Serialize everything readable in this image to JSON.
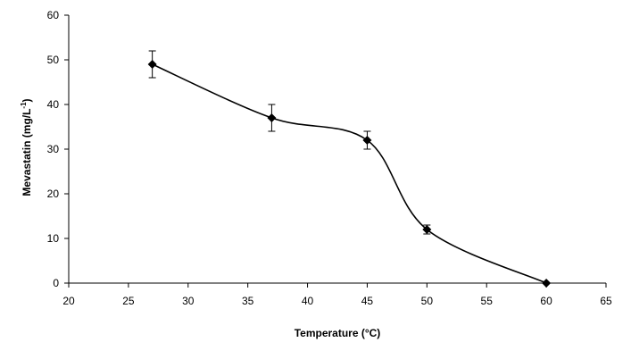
{
  "chart_data": {
    "type": "line",
    "title": "",
    "xlabel": "Temperature (°C)",
    "ylabel_main": "Mevastatin (mg/L",
    "ylabel_sup": "-1",
    "ylabel_close": ")",
    "xlim": [
      20,
      65
    ],
    "ylim": [
      0,
      60
    ],
    "x_ticks": [
      20,
      25,
      30,
      35,
      40,
      45,
      50,
      55,
      60,
      65
    ],
    "y_ticks": [
      0,
      10,
      20,
      30,
      40,
      50,
      60
    ],
    "grid": false,
    "legend": "none",
    "smooth": true,
    "series": [
      {
        "x": [
          27,
          37,
          45,
          50,
          60
        ],
        "y": [
          49,
          37,
          32,
          12,
          0
        ],
        "error": [
          3,
          3,
          2,
          1,
          0
        ],
        "marker": "diamond",
        "color": "#000000"
      }
    ]
  }
}
